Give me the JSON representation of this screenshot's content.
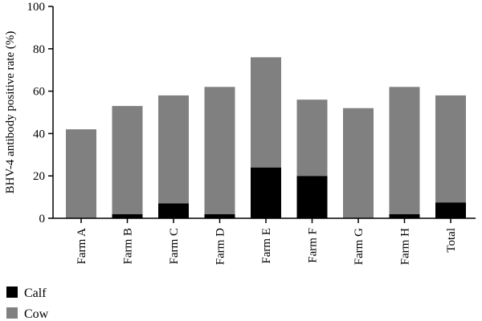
{
  "chart_data": {
    "type": "bar",
    "stacked": true,
    "categories": [
      "Farm A",
      "Farm B",
      "Farm C",
      "Farm D",
      "Farm E",
      "Farm F",
      "Farm G",
      "Farm H",
      "Total"
    ],
    "series": [
      {
        "name": "Calf",
        "color": "#000000",
        "values": [
          0,
          2,
          7,
          2,
          24,
          20,
          0,
          2,
          7.5
        ]
      },
      {
        "name": "Cow",
        "color": "#808080",
        "values": [
          42,
          51,
          51,
          60,
          52,
          36,
          52,
          60,
          50.5
        ]
      }
    ],
    "ylabel": "BHV-4 antibody positive rate (%)",
    "xlabel": "",
    "ylim": [
      0,
      100
    ],
    "yticks": [
      0,
      20,
      40,
      60,
      80,
      100
    ],
    "legend_position": "bottom-left",
    "grid": false
  }
}
